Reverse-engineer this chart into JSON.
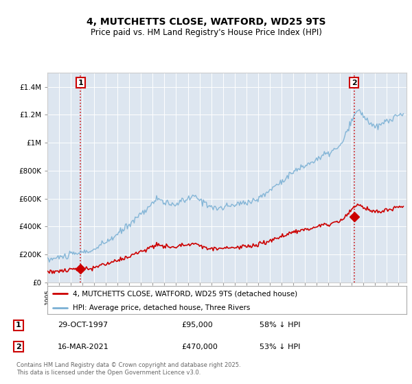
{
  "title_line1": "4, MUTCHETTS CLOSE, WATFORD, WD25 9TS",
  "title_line2": "Price paid vs. HM Land Registry's House Price Index (HPI)",
  "bg_color": "#dde6f0",
  "hpi_color": "#7ab0d4",
  "price_color": "#cc0000",
  "marker_color": "#cc0000",
  "dashed_color": "#cc0000",
  "grid_color": "#ffffff",
  "legend_label_price": "4, MUTCHETTS CLOSE, WATFORD, WD25 9TS (detached house)",
  "legend_label_hpi": "HPI: Average price, detached house, Three Rivers",
  "transaction1_date": "29-OCT-1997",
  "transaction1_price": "£95,000",
  "transaction1_note": "58% ↓ HPI",
  "transaction2_date": "16-MAR-2021",
  "transaction2_price": "£470,000",
  "transaction2_note": "53% ↓ HPI",
  "footer": "Contains HM Land Registry data © Crown copyright and database right 2025.\nThis data is licensed under the Open Government Licence v3.0.",
  "ylim_min": 0,
  "ylim_max": 1500000,
  "transaction1_year": 1997.83,
  "transaction1_value": 95000,
  "transaction2_year": 2021.21,
  "transaction2_value": 470000
}
